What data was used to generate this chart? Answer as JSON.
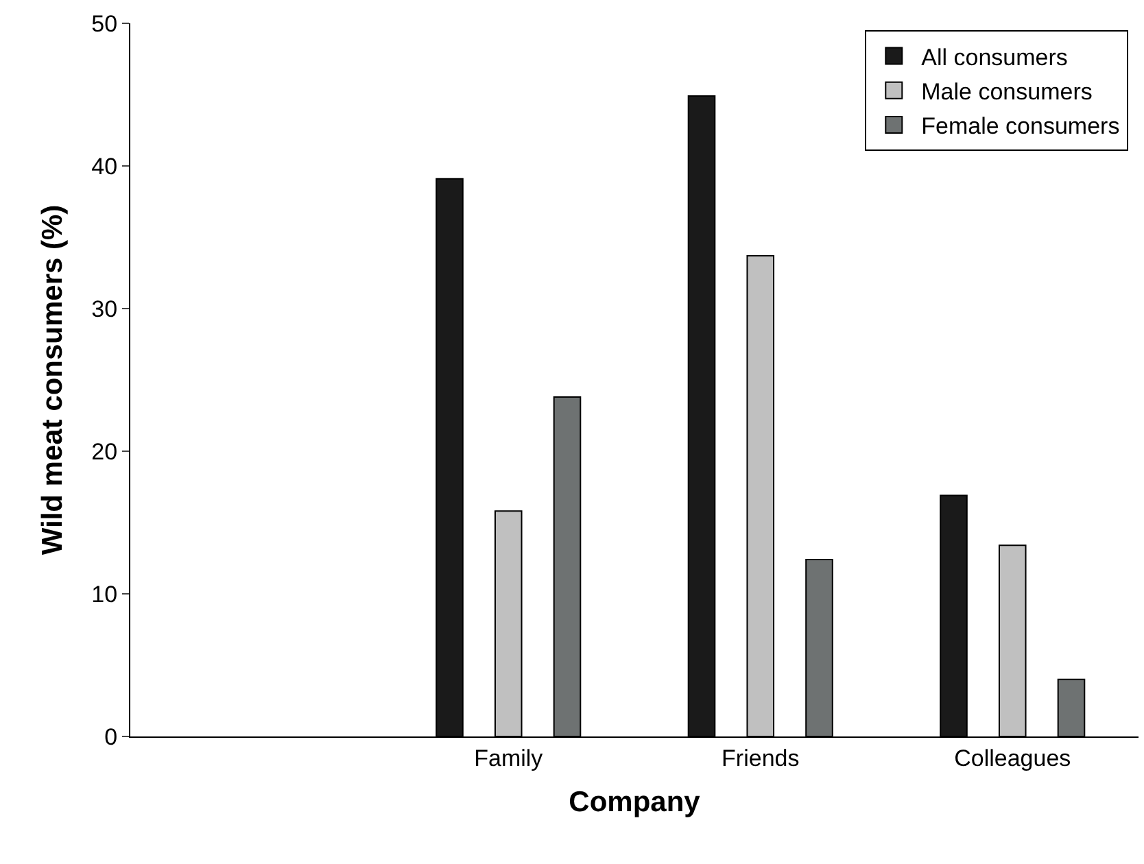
{
  "chart_data": {
    "type": "bar",
    "xlabel": "Company",
    "ylabel": "Wild meat consumers (%)",
    "categories": [
      null,
      "Family",
      "Friends",
      "Colleagues"
    ],
    "series": [
      {
        "name": "All consumers",
        "color": "#1a1a1a",
        "values": [
          null,
          39.1,
          44.9,
          16.9
        ]
      },
      {
        "name": "Male consumers",
        "color": "#c0c0c0",
        "values": [
          null,
          15.8,
          33.7,
          13.4
        ]
      },
      {
        "name": "Female consumers",
        "color": "#6e7272",
        "values": [
          null,
          23.8,
          12.4,
          4.0
        ]
      }
    ],
    "ylim": [
      0,
      50
    ],
    "yticks": [
      0,
      10,
      20,
      30,
      40,
      50
    ],
    "legend": "top right"
  }
}
